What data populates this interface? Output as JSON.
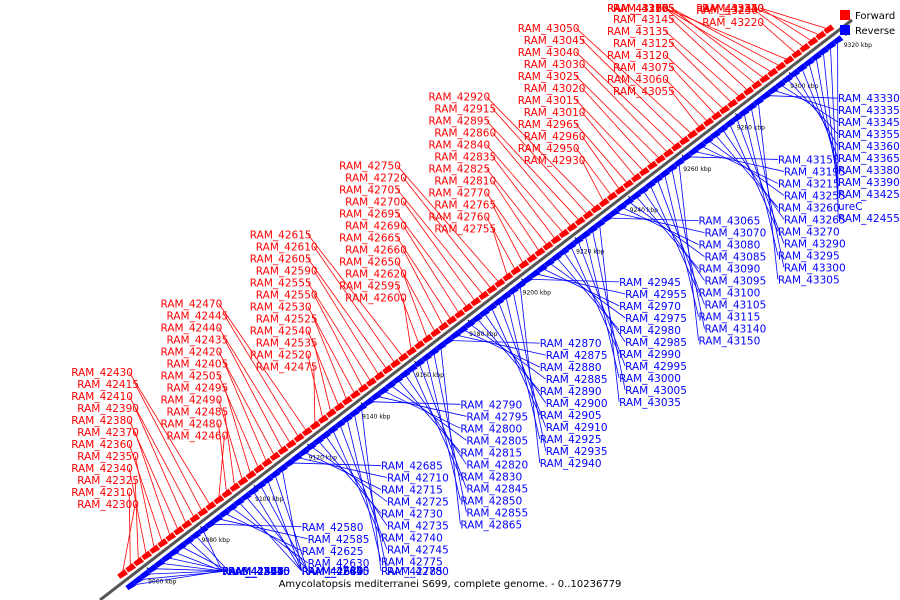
{
  "caption": "Amycolatopsis mediterranei S699, complete genome. - 0..10236779",
  "legend": {
    "forward": {
      "label": "Forward",
      "color": "#ff0000"
    },
    "reverse": {
      "label": "Reverse",
      "color": "#0000ff"
    }
  },
  "ticks": [
    "9060 kbp",
    "9080 kbp",
    "9100 kbp",
    "9120 kbp",
    "9140 kbp",
    "9160 kbp",
    "9180 kbp",
    "9200 kbp",
    "9220 kbp",
    "9240 kbp",
    "9260 kbp",
    "9280 kbp",
    "9300 kbp",
    "9320 kbp"
  ],
  "forward_genes": [
    "RAM_42300",
    "RAM_42310",
    "RAM_42325",
    "RAM_42340",
    "RAM_42350",
    "RAM_42360",
    "RAM_42370",
    "RAM_42380",
    "RAM_42390",
    "RAM_42410",
    "RAM_42415",
    "RAM_42430",
    "RAM_42460",
    "RAM_42480",
    "RAM_42485",
    "RAM_42490",
    "RAM_42495",
    "RAM_42505",
    "RAM_42405",
    "RAM_42420",
    "RAM_42435",
    "RAM_42440",
    "RAM_42445",
    "RAM_42470",
    "RAM_42475",
    "RAM_42520",
    "RAM_42535",
    "RAM_42540",
    "RAM_42525",
    "RAM_42530",
    "RAM_42550",
    "RAM_42555",
    "RAM_42590",
    "RAM_42605",
    "RAM_42610",
    "RAM_42615",
    "RAM_42600",
    "RAM_42595",
    "RAM_42620",
    "RAM_42650",
    "RAM_42660",
    "RAM_42665",
    "RAM_42690",
    "RAM_42695",
    "RAM_42700",
    "RAM_42705",
    "RAM_42720",
    "RAM_42750",
    "RAM_42755",
    "RAM_42760",
    "RAM_42765",
    "RAM_42770",
    "RAM_42810",
    "RAM_42825",
    "RAM_42835",
    "RAM_42840",
    "RAM_42860",
    "RAM_42895",
    "RAM_42915",
    "RAM_42920",
    "RAM_42930",
    "RAM_42950",
    "RAM_42960",
    "RAM_42965",
    "RAM_43010",
    "RAM_43015",
    "RAM_43020",
    "RAM_43025",
    "RAM_43030",
    "RAM_43040",
    "RAM_43045",
    "RAM_43050",
    "RAM_43055",
    "RAM_43060",
    "RAM_43075",
    "RAM_43120",
    "RAM_43125",
    "RAM_43135",
    "RAM_43145",
    "RAM_43160",
    "RAM_43165",
    "RAM_43170",
    "RAM_43175",
    "RAM_43205",
    "RAM_43220",
    "RAM_43230",
    "RAM_43240",
    "RAM_43245",
    "RAM_43320"
  ],
  "reverse_genes": [
    "RAM_42355",
    "RAM_42375",
    "RAM_42425",
    "RAM_42450",
    "RAM_42465",
    "RAM_42515",
    "vanB",
    "RAM_42545",
    "RAM_42560",
    "RAM_42570",
    "RAM_42575",
    "RAM_42580",
    "RAM_42585",
    "RAM_42625",
    "RAM_42630",
    "RAM_42635",
    "RAM_42640",
    "RAM_42645",
    "RAM_42655",
    "RAM_42670",
    "RAM_42675",
    "RAM_42680",
    "RAM_42685",
    "RAM_42710",
    "RAM_42715",
    "RAM_42725",
    "RAM_42730",
    "RAM_42735",
    "RAM_42740",
    "RAM_42745",
    "RAM_42775",
    "RAM_42780",
    "RAM_42785",
    "RAM_42790",
    "RAM_42795",
    "RAM_42800",
    "RAM_42805",
    "RAM_42815",
    "RAM_42820",
    "RAM_42830",
    "RAM_42845",
    "RAM_42850",
    "RAM_42855",
    "RAM_42865",
    "RAM_42870",
    "RAM_42875",
    "RAM_42880",
    "RAM_42885",
    "RAM_42890",
    "RAM_42900",
    "RAM_42905",
    "RAM_42910",
    "RAM_42925",
    "RAM_42935",
    "RAM_42940",
    "RAM_42945",
    "RAM_42955",
    "RAM_42970",
    "RAM_42975",
    "RAM_42980",
    "RAM_42985",
    "RAM_42990",
    "RAM_42995",
    "RAM_43000",
    "RAM_43005",
    "RAM_43035",
    "RAM_43065",
    "RAM_43070",
    "RAM_43080",
    "RAM_43085",
    "RAM_43090",
    "RAM_43095",
    "RAM_43100",
    "RAM_43105",
    "RAM_43115",
    "RAM_43140",
    "RAM_43150",
    "RAM_43155",
    "RAM_43195",
    "RAM_43215",
    "RAM_43255",
    "RAM_43260",
    "RAM_43265",
    "RAM_43270",
    "RAM_43290",
    "RAM_43295",
    "RAM_43300",
    "RAM_43305",
    "RAM_43330",
    "RAM_43335",
    "RAM_43345",
    "RAM_43355",
    "RAM_43360",
    "RAM_43365",
    "RAM_43380",
    "RAM_43390",
    "RAM_43425",
    "ureC",
    "RAM_42455"
  ]
}
